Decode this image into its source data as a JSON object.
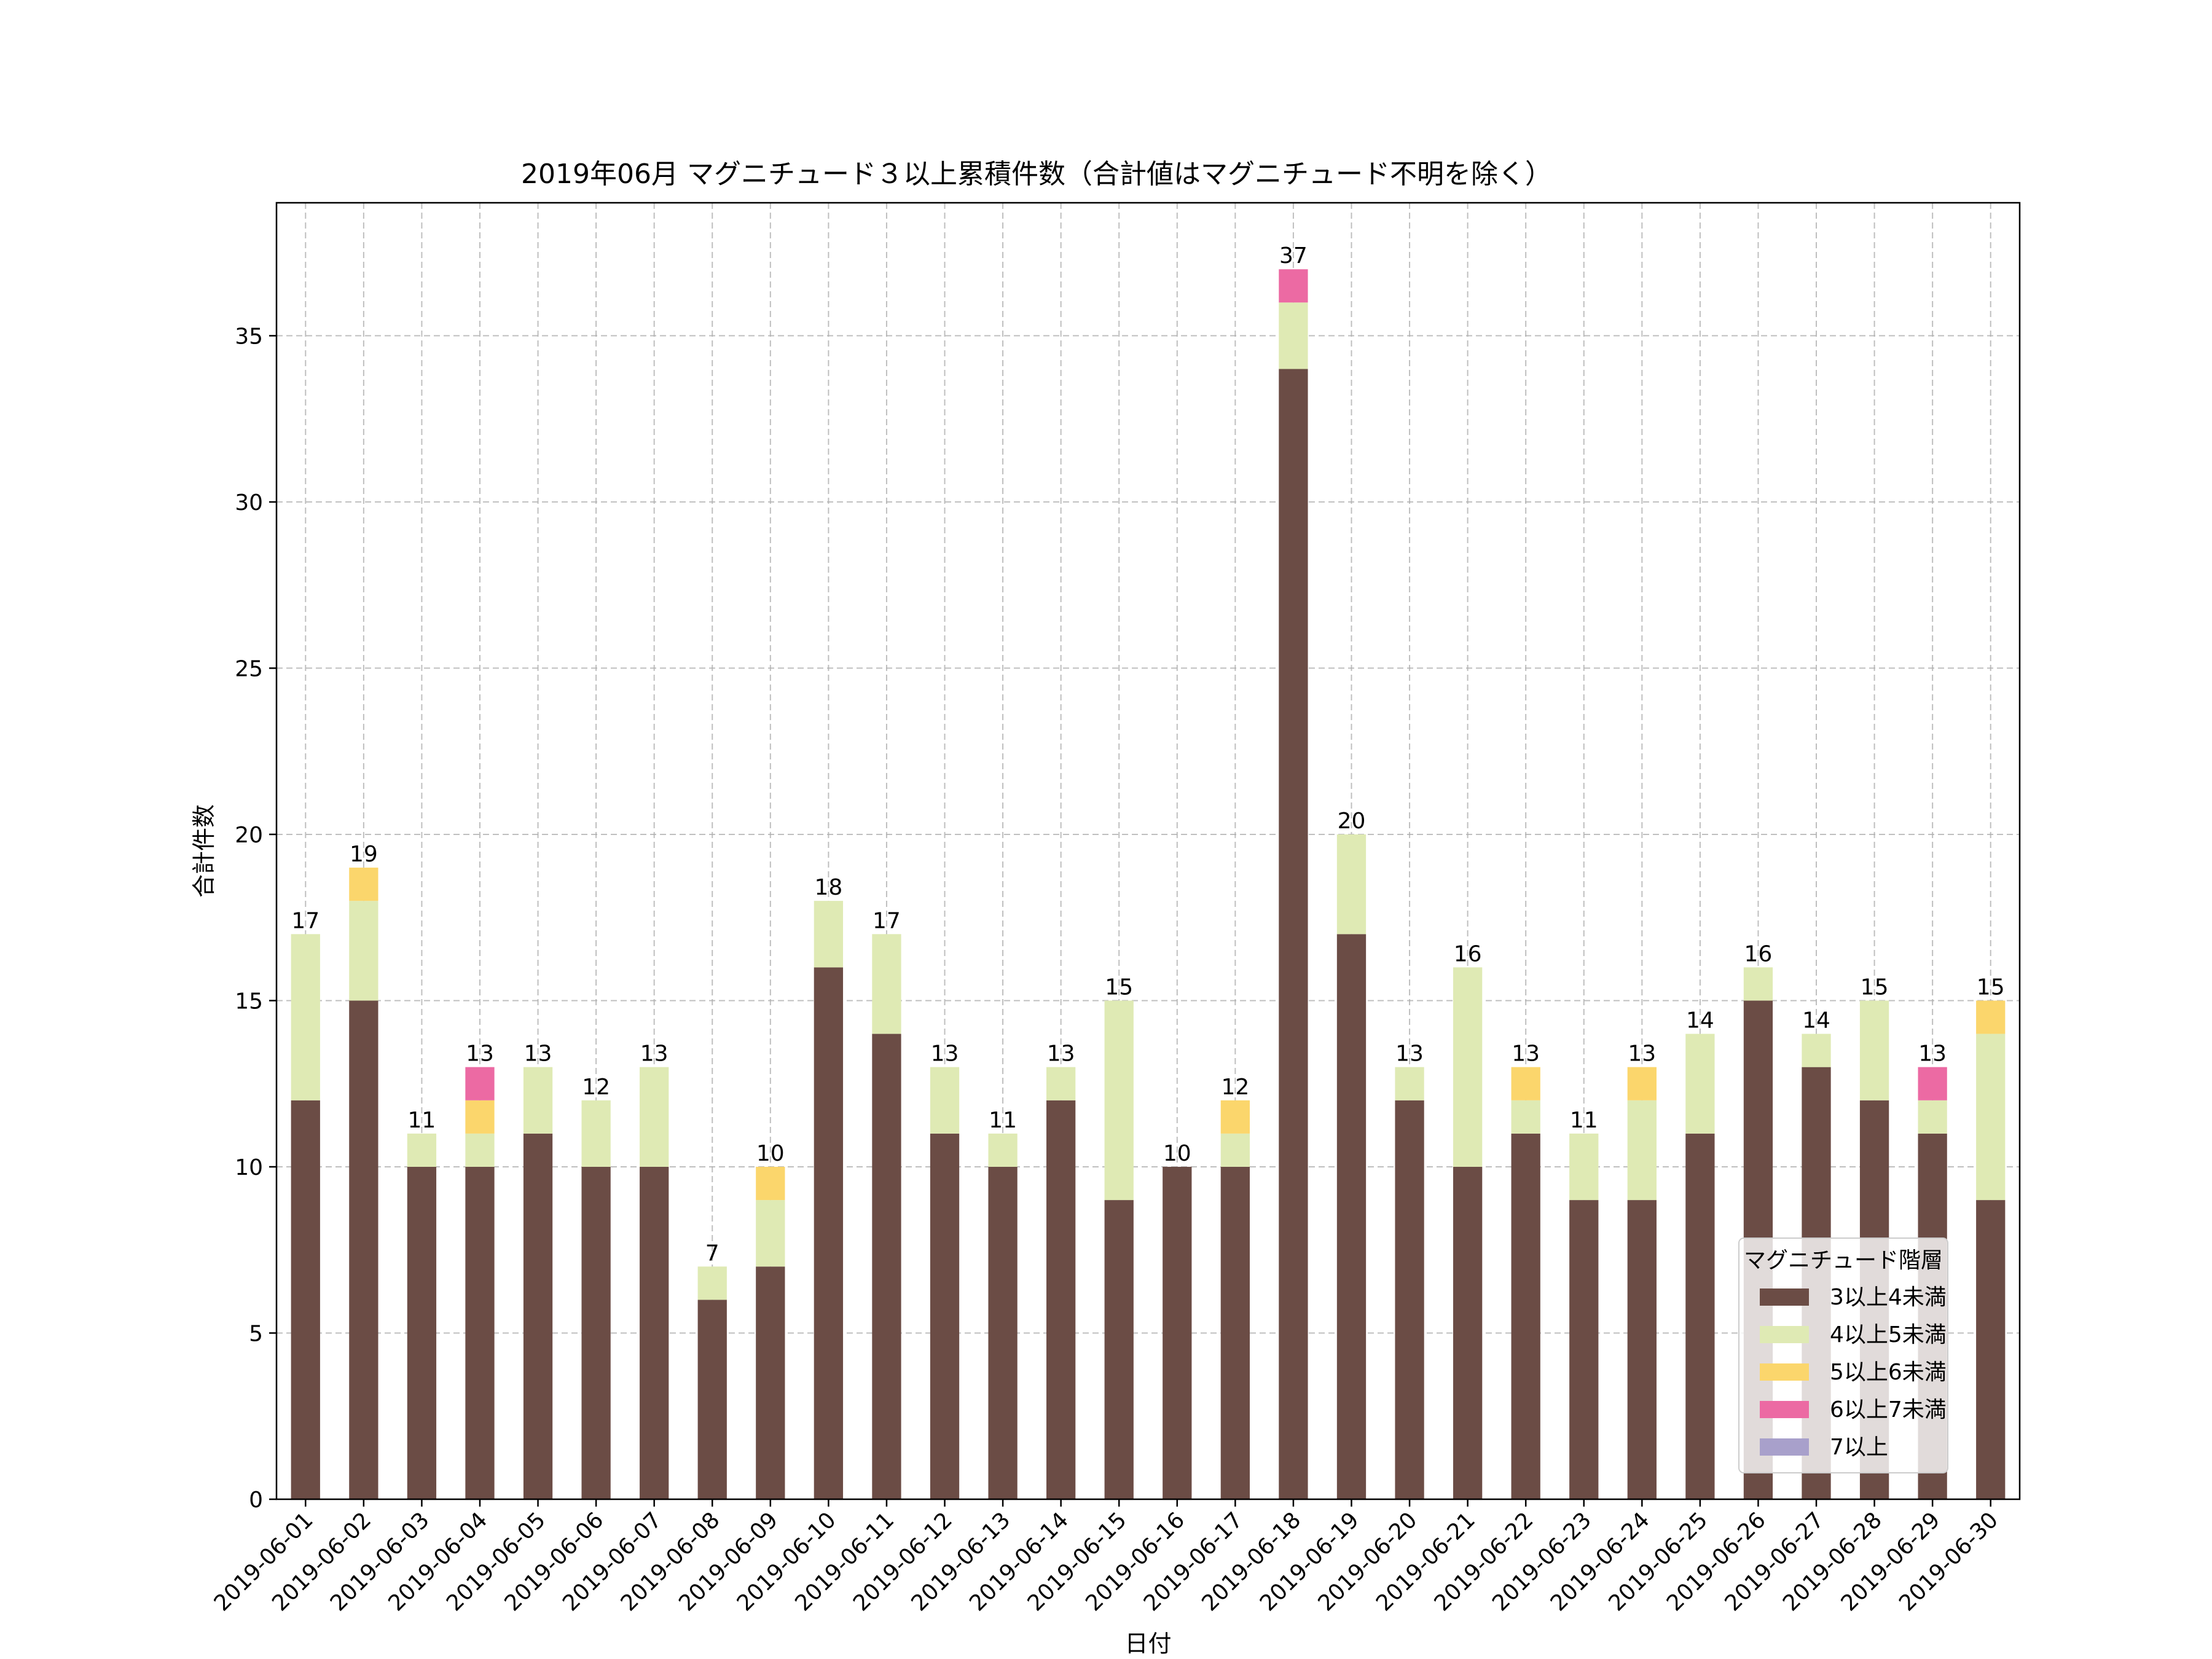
{
  "chart_data": {
    "type": "bar",
    "stacked": true,
    "title": "2019年06月 マグニチュード３以上累積件数（合計値はマグニチュード不明を除く）",
    "xlabel": "日付",
    "ylabel": "合計件数",
    "ylim": [
      0,
      39
    ],
    "yticks": [
      0,
      5,
      10,
      15,
      20,
      25,
      30,
      35
    ],
    "grid": true,
    "legend": {
      "title": "マグニチュード階層",
      "placement": "lower-right"
    },
    "categories": [
      "2019-06-01",
      "2019-06-02",
      "2019-06-03",
      "2019-06-04",
      "2019-06-05",
      "2019-06-06",
      "2019-06-07",
      "2019-06-08",
      "2019-06-09",
      "2019-06-10",
      "2019-06-11",
      "2019-06-12",
      "2019-06-13",
      "2019-06-14",
      "2019-06-15",
      "2019-06-16",
      "2019-06-17",
      "2019-06-18",
      "2019-06-19",
      "2019-06-20",
      "2019-06-21",
      "2019-06-22",
      "2019-06-23",
      "2019-06-24",
      "2019-06-25",
      "2019-06-26",
      "2019-06-27",
      "2019-06-28",
      "2019-06-29",
      "2019-06-30"
    ],
    "series": [
      {
        "name": "3以上4未満",
        "color": "#6b4c45",
        "values": [
          12,
          15,
          10,
          10,
          11,
          10,
          10,
          6,
          7,
          16,
          14,
          11,
          10,
          12,
          9,
          10,
          10,
          34,
          17,
          12,
          10,
          11,
          9,
          9,
          11,
          15,
          13,
          12,
          11,
          9
        ]
      },
      {
        "name": "4以上5未満",
        "color": "#dfeab4",
        "values": [
          5,
          3,
          1,
          1,
          2,
          2,
          3,
          1,
          2,
          2,
          3,
          2,
          1,
          1,
          6,
          0,
          1,
          2,
          3,
          1,
          6,
          1,
          2,
          3,
          3,
          1,
          1,
          3,
          1,
          5
        ]
      },
      {
        "name": "5以上6未満",
        "color": "#fbd66c",
        "values": [
          0,
          1,
          0,
          1,
          0,
          0,
          0,
          0,
          1,
          0,
          0,
          0,
          0,
          0,
          0,
          0,
          1,
          0,
          0,
          0,
          0,
          1,
          0,
          1,
          0,
          0,
          0,
          0,
          0,
          1
        ]
      },
      {
        "name": "6以上7未満",
        "color": "#ec6aa3",
        "values": [
          0,
          0,
          0,
          1,
          0,
          0,
          0,
          0,
          0,
          0,
          0,
          0,
          0,
          0,
          0,
          0,
          0,
          1,
          0,
          0,
          0,
          0,
          0,
          0,
          0,
          0,
          0,
          0,
          1,
          0
        ]
      },
      {
        "name": "7以上",
        "color": "#a8a0cb",
        "values": [
          0,
          0,
          0,
          0,
          0,
          0,
          0,
          0,
          0,
          0,
          0,
          0,
          0,
          0,
          0,
          0,
          0,
          0,
          0,
          0,
          0,
          0,
          0,
          0,
          0,
          0,
          0,
          0,
          0,
          0
        ]
      }
    ],
    "totals": [
      17,
      19,
      11,
      13,
      13,
      12,
      13,
      7,
      10,
      18,
      17,
      13,
      11,
      13,
      15,
      10,
      12,
      37,
      20,
      13,
      16,
      13,
      11,
      13,
      14,
      16,
      14,
      15,
      13,
      15
    ]
  }
}
